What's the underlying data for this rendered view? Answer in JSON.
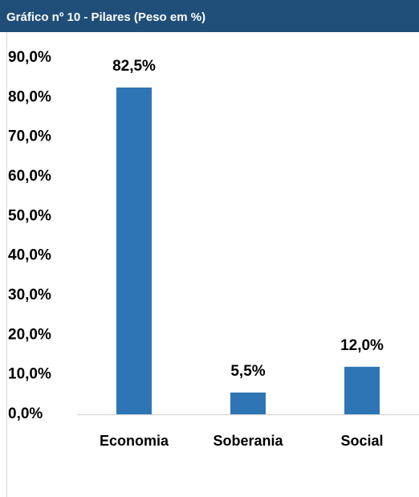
{
  "chart_data": {
    "type": "bar",
    "title": "Gráfico nº 10 - Pilares (Peso em %)",
    "categories": [
      "Economia",
      "Soberania",
      "Social"
    ],
    "values": [
      82.5,
      5.5,
      12.0
    ],
    "value_labels": [
      "82,5%",
      "5,5%",
      "12,0%"
    ],
    "color": "#2e75b6",
    "ylim": [
      0,
      90
    ],
    "yticks": [
      {
        "value": 0,
        "label": "0,0%"
      },
      {
        "value": 10,
        "label": "10,0%"
      },
      {
        "value": 20,
        "label": "20,0%"
      },
      {
        "value": 30,
        "label": "30,0%"
      },
      {
        "value": 40,
        "label": "40,0%"
      },
      {
        "value": 50,
        "label": "50,0%"
      },
      {
        "value": 60,
        "label": "60,0%"
      },
      {
        "value": 70,
        "label": "70,0%"
      },
      {
        "value": 80,
        "label": "80,0%"
      },
      {
        "value": 90,
        "label": "90,0%"
      }
    ],
    "grid": false
  }
}
